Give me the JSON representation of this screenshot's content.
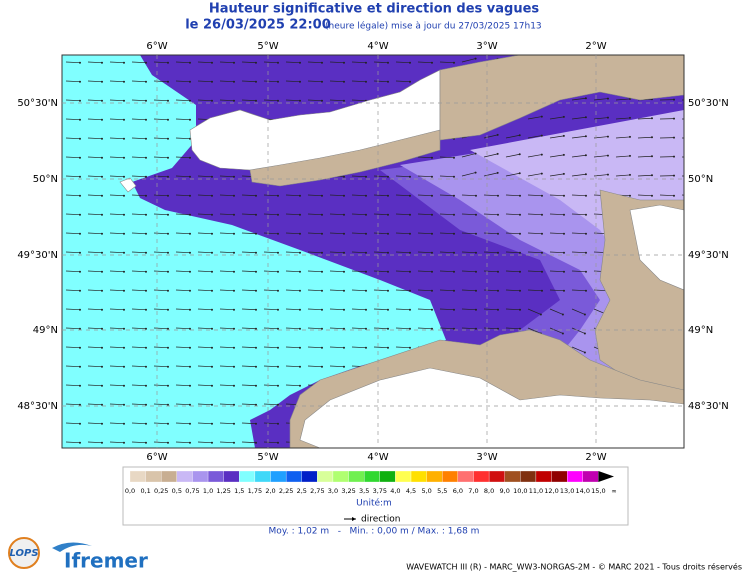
{
  "header": {
    "title": "Hauteur significative et direction des vagues",
    "subtitle": "le 26/03/2025 22:00",
    "update_note": "(heure légale) mise à jour du 27/03/2025 17h13"
  },
  "map": {
    "lon_labels": [
      "6°W",
      "5°W",
      "4°W",
      "3°W",
      "2°W"
    ],
    "lat_labels": [
      "50°30'N",
      "50°N",
      "49°30'N",
      "49°N",
      "48°30'N"
    ]
  },
  "legend": {
    "labels": [
      "0,0",
      "0,1",
      "0,25",
      "0,5",
      "0,75",
      "1,0",
      "1,25",
      "1,5",
      "1,75",
      "2,0",
      "2,25",
      "2,5",
      "2,75",
      "3,0",
      "3,25",
      "3,5",
      "3,75",
      "4,0",
      "4,5",
      "5,0",
      "5,5",
      "6,0",
      "7,0",
      "8,0",
      "9,0",
      "10,0",
      "11,0",
      "12,0",
      "13,0",
      "14,0",
      "15,0",
      "∞"
    ],
    "colors": [
      "#e8d8c4",
      "#d9c4aa",
      "#c8ae92",
      "#c9b8f5",
      "#a994ee",
      "#7a5ad9",
      "#5a2fc2",
      "#80ffff",
      "#40d8f8",
      "#20a0ff",
      "#1060f0",
      "#0020c8",
      "#d8ff9a",
      "#b0ff70",
      "#70f050",
      "#30d830",
      "#10b010",
      "#ffff50",
      "#ffe000",
      "#ffb000",
      "#ff8000",
      "#ff7070",
      "#ff3030",
      "#d01010",
      "#a05020",
      "#803010",
      "#c00000",
      "#900000",
      "#ff00ff",
      "#c000b0",
      "#000000"
    ],
    "unit": "Unité:m",
    "direction_label": "direction",
    "stats": "Moy. : 1,02 m   -   Min. : 0,00 m / Max. : 1,68 m"
  },
  "footer": {
    "credit": "WAVEWATCH III (R) - MARC_WW3-NORGAS-2M - © MARC 2021 - Tous droits réservés",
    "logos": [
      "LOPS",
      "Ifremer"
    ]
  }
}
